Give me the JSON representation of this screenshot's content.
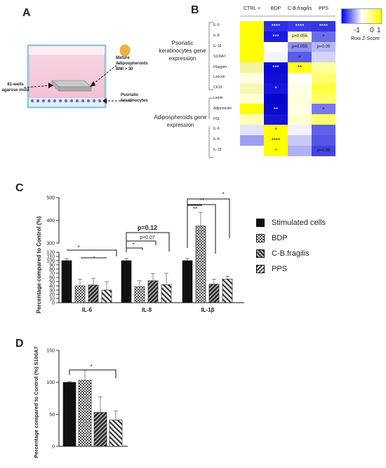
{
  "panels": {
    "a": "A",
    "b": "B",
    "c": "C",
    "d": "D"
  },
  "panel_a": {
    "label_wells": "81-wells agarose mold",
    "label_adipo": "Mature Adipospheroids BMI > 30",
    "label_kerat": "Psoriatic keratinocytes"
  },
  "panel_b": {
    "columns": [
      "CTRL +",
      "BDP",
      "C-B.fragilis",
      "PPS"
    ],
    "group1_title": "Psoriatic keratinocytes gene expression",
    "group2_title": "Adipospheroids gene expression",
    "rows": [
      {
        "label": "IL-6",
        "cells": [
          "",
          "****",
          "****",
          "****"
        ],
        "colors": [
          "#ffff00",
          "#2d2de6",
          "#3b3be8",
          "#3636e3"
        ]
      },
      {
        "label": "IL-8",
        "cells": [
          "",
          "***",
          "p=0.056",
          "*"
        ],
        "colors": [
          "#ffff00",
          "#1a1ae0",
          "#ffffc8",
          "#6b6bee"
        ]
      },
      {
        "label": "IL-1β",
        "cells": [
          "",
          "",
          "p=0.055",
          "p=0.09"
        ],
        "colors": [
          "#ffff00",
          "#ffffff",
          "#8e8ef0",
          "#b8b8f6"
        ]
      },
      {
        "label": "S100A7",
        "cells": [
          "",
          "",
          "*",
          ""
        ],
        "colors": [
          "#ffff00",
          "#f4f4ff",
          "#5a5aec",
          "#d4d4fa"
        ]
      },
      {
        "label": "Filaggrin",
        "cells": [
          "",
          "***",
          "**",
          ""
        ],
        "colors": [
          "#f3f3a0",
          "#0c0cd8",
          "#ffff20",
          "#ffff9a"
        ]
      },
      {
        "label": "Loricrin",
        "cells": [
          "",
          "",
          "",
          ""
        ],
        "colors": [
          "#ffffe0",
          "#1010d4",
          "#ffffff",
          "#ffff70"
        ]
      },
      {
        "label": "CK16",
        "cells": [
          "",
          "*",
          "",
          ""
        ],
        "colors": [
          "#f5f5b5",
          "#1616da",
          "#ffffe6",
          "#ffff40"
        ]
      },
      {
        "label": "Leptin",
        "cells": [
          "",
          "",
          "",
          ""
        ],
        "colors": [
          "#ffffd2",
          "#0505cc",
          "#ffffd8",
          "#ffff66"
        ]
      },
      {
        "label": "Adiponectin",
        "cells": [
          "",
          "**",
          "",
          "*"
        ],
        "colors": [
          "#ffff00",
          "#0909d0",
          "#ffffe8",
          "#7878f0"
        ]
      },
      {
        "label": "HSL",
        "cells": [
          "",
          "",
          "",
          ""
        ],
        "colors": [
          "#ffffb8",
          "#1515d8",
          "#ffffd0",
          "#ffff6a"
        ]
      },
      {
        "label": "IL-6",
        "cells": [
          "",
          "*",
          "",
          ""
        ],
        "colors": [
          "#e2e2ff",
          "#ffff00",
          "#f1f1ff",
          "#6060ea"
        ]
      },
      {
        "label": "IL-8",
        "cells": [
          "",
          "****",
          "",
          ""
        ],
        "colors": [
          "#9d9df4",
          "#ffff00",
          "#c9c9f8",
          "#5555e8"
        ]
      },
      {
        "label": "IL-15",
        "cells": [
          "",
          "*",
          "",
          "p=0.08"
        ],
        "colors": [
          "#ffffff",
          "#ffff00",
          "#b0b0f2",
          "#4343e4"
        ]
      }
    ],
    "colorbar": {
      "ticks": [
        "-1",
        "0",
        "1"
      ],
      "label": "Row Z-Score",
      "low_color": "#0000ff",
      "mid_color": "#ffffff",
      "high_color": "#ffff00"
    }
  },
  "chart_data": [
    {
      "type": "bar",
      "panel": "C",
      "ylabel": "Percentage compared to Control (%)",
      "categories": [
        "IL-6",
        "IL-8",
        "IL-1β"
      ],
      "y_broken_axis": true,
      "y_ticks_lower": [
        0,
        10,
        20,
        30,
        40,
        50,
        60,
        70,
        80,
        90,
        100,
        110,
        120
      ],
      "y_ticks_upper": [
        300,
        400,
        500
      ],
      "series": [
        {
          "name": "Stimulated cells",
          "values": [
            100,
            100,
            100
          ],
          "errors": [
            4,
            5,
            5
          ]
        },
        {
          "name": "BDP",
          "values": [
            40,
            38,
            375
          ],
          "errors": [
            16,
            14,
            60
          ]
        },
        {
          "name": "C-B.fragilis",
          "values": [
            42,
            52,
            44
          ],
          "errors": [
            16,
            17,
            12
          ]
        },
        {
          "name": "PPS",
          "values": [
            30,
            43,
            56
          ],
          "errors": [
            20,
            27,
            7
          ]
        }
      ],
      "significance": [
        {
          "category": "IL-6",
          "text": "*"
        },
        {
          "category": "IL-8",
          "text": "p=0.12"
        },
        {
          "category": "IL-8",
          "text": "p=0.07"
        },
        {
          "category": "IL-8",
          "text": "*"
        },
        {
          "category": "IL-1β",
          "text": "*"
        },
        {
          "category": "IL-1β",
          "text": "**"
        },
        {
          "category": "IL-1β",
          "text": "**"
        }
      ]
    },
    {
      "type": "bar",
      "panel": "D",
      "ylabel": "Percentage compared to Control (%) S100A7",
      "ylim": [
        0,
        150
      ],
      "y_ticks": [
        0,
        50,
        100,
        150
      ],
      "series": [
        {
          "name": "Stimulated cells",
          "values": [
            100
          ],
          "errors": [
            1
          ]
        },
        {
          "name": "BDP",
          "values": [
            103
          ],
          "errors": [
            16
          ]
        },
        {
          "name": "C-B.fragilis",
          "values": [
            53
          ],
          "errors": [
            24
          ]
        },
        {
          "name": "PPS",
          "values": [
            41
          ],
          "errors": [
            14
          ]
        }
      ],
      "significance": [
        {
          "text": "*"
        }
      ]
    }
  ],
  "legend": {
    "items": [
      {
        "label": "Stimulated cells",
        "pattern": "solid"
      },
      {
        "label": "BDP",
        "pattern": "checker"
      },
      {
        "label": "C-B.fragilis",
        "pattern": "dark-stripe"
      },
      {
        "label": "PPS",
        "pattern": "light-stripe"
      }
    ]
  }
}
